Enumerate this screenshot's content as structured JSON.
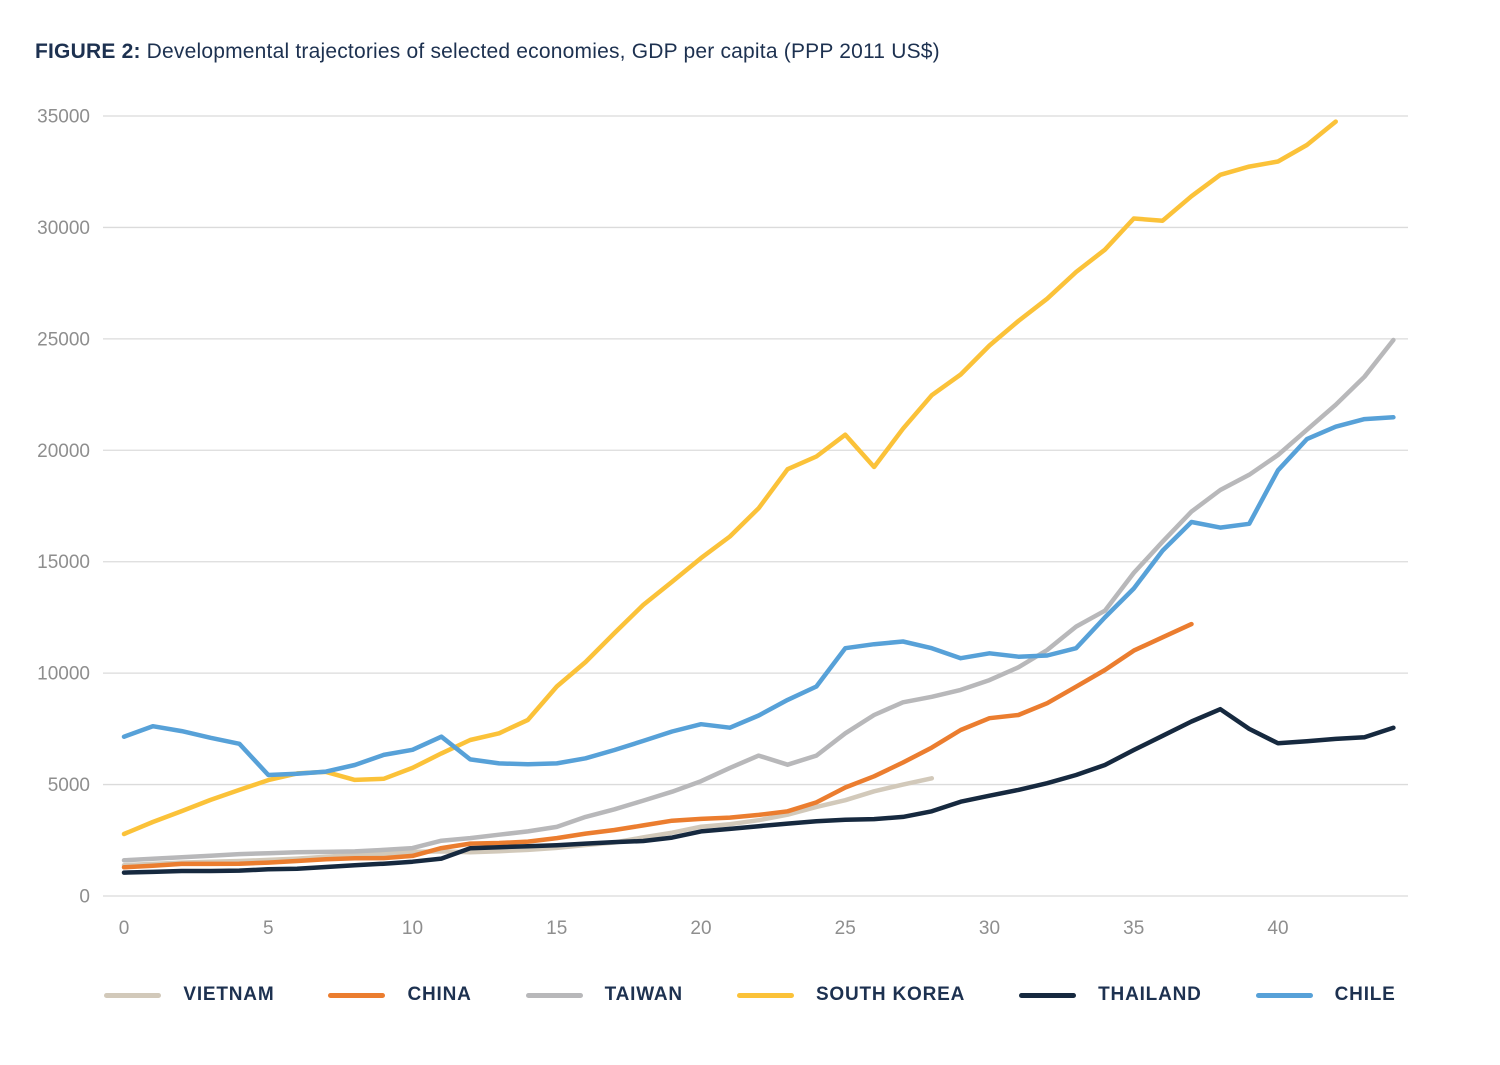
{
  "title": {
    "prefix": "FIGURE 2:",
    "text": "Developmental trajectories of selected economies, GDP per capita (PPP 2011 US$)"
  },
  "colors": {
    "title_text": "#1d3150",
    "legend_text": "#1d3150",
    "tick_text": "#8e8e8e",
    "gridline": "#dbdbdb",
    "background": "#ffffff"
  },
  "chart_data": {
    "type": "line",
    "title": "Developmental trajectories of selected economies, GDP per capita (PPP 2011 US$)",
    "xlabel": "",
    "ylabel": "",
    "x_ticks": [
      0,
      5,
      10,
      15,
      20,
      25,
      30,
      35,
      40
    ],
    "y_ticks": [
      0,
      5000,
      10000,
      15000,
      20000,
      25000,
      30000,
      35000
    ],
    "xlim": [
      0,
      44.5
    ],
    "ylim": [
      0,
      35000
    ],
    "grid": "horizontal-only",
    "legend_position": "bottom",
    "series": [
      {
        "name": "VIETNAM",
        "color": "#d2c9ba",
        "start_x": 0,
        "values": [
          1380,
          1440,
          1500,
          1540,
          1570,
          1620,
          1680,
          1760,
          1840,
          1900,
          1980,
          2000,
          1960,
          2010,
          2070,
          2160,
          2290,
          2400,
          2630,
          2840,
          3110,
          3220,
          3400,
          3650,
          4000,
          4300,
          4700,
          5000,
          5280
        ]
      },
      {
        "name": "CHINA",
        "color": "#eb7d2f",
        "start_x": 0,
        "values": [
          1290,
          1360,
          1440,
          1440,
          1450,
          1500,
          1570,
          1650,
          1690,
          1700,
          1800,
          2150,
          2350,
          2380,
          2440,
          2600,
          2800,
          2960,
          3170,
          3380,
          3460,
          3520,
          3640,
          3800,
          4200,
          4870,
          5370,
          5990,
          6660,
          7450,
          7980,
          8120,
          8650,
          9390,
          10140,
          11010,
          11610,
          12200
        ]
      },
      {
        "name": "TAIWAN",
        "color": "#b8b8ba",
        "start_x": 0,
        "values": [
          1600,
          1670,
          1740,
          1810,
          1880,
          1920,
          1960,
          1980,
          2000,
          2070,
          2150,
          2480,
          2600,
          2750,
          2900,
          3100,
          3550,
          3890,
          4280,
          4680,
          5150,
          5750,
          6300,
          5890,
          6300,
          7300,
          8120,
          8690,
          8940,
          9250,
          9690,
          10260,
          11040,
          12090,
          12800,
          14500,
          15900,
          17250,
          18220,
          18900,
          19790,
          20920,
          22040,
          23300,
          24950
        ]
      },
      {
        "name": "SOUTH KOREA",
        "color": "#fbc239",
        "start_x": 0,
        "values": [
          2780,
          3320,
          3810,
          4310,
          4760,
          5200,
          5500,
          5570,
          5210,
          5260,
          5750,
          6400,
          7000,
          7300,
          7900,
          9400,
          10500,
          11800,
          13060,
          14100,
          15160,
          16130,
          17400,
          19150,
          19720,
          20700,
          19250,
          20970,
          22470,
          23400,
          24700,
          25800,
          26800,
          28000,
          29000,
          30400,
          30300,
          31400,
          32360,
          32730,
          32960,
          33700,
          34750
        ]
      },
      {
        "name": "THAILAND",
        "color": "#16293f",
        "start_x": 0,
        "values": [
          1050,
          1080,
          1120,
          1120,
          1140,
          1200,
          1220,
          1300,
          1380,
          1450,
          1540,
          1680,
          2140,
          2190,
          2230,
          2280,
          2350,
          2420,
          2470,
          2620,
          2900,
          3010,
          3130,
          3250,
          3350,
          3420,
          3450,
          3550,
          3800,
          4230,
          4500,
          4760,
          5060,
          5430,
          5880,
          6550,
          7190,
          7830,
          8380,
          7500,
          6850,
          6940,
          7050,
          7120,
          7550
        ]
      },
      {
        "name": "CHILE",
        "color": "#57a1d8",
        "start_x": 0,
        "values": [
          7150,
          7620,
          7400,
          7100,
          6830,
          5430,
          5490,
          5580,
          5880,
          6330,
          6560,
          7150,
          6130,
          5950,
          5910,
          5950,
          6180,
          6550,
          6960,
          7380,
          7710,
          7550,
          8100,
          8800,
          9400,
          11120,
          11300,
          11420,
          11120,
          10670,
          10890,
          10740,
          10790,
          11120,
          12500,
          13800,
          15500,
          16780,
          16530,
          16700,
          19100,
          20500,
          21060,
          21400,
          21480
        ]
      }
    ]
  }
}
